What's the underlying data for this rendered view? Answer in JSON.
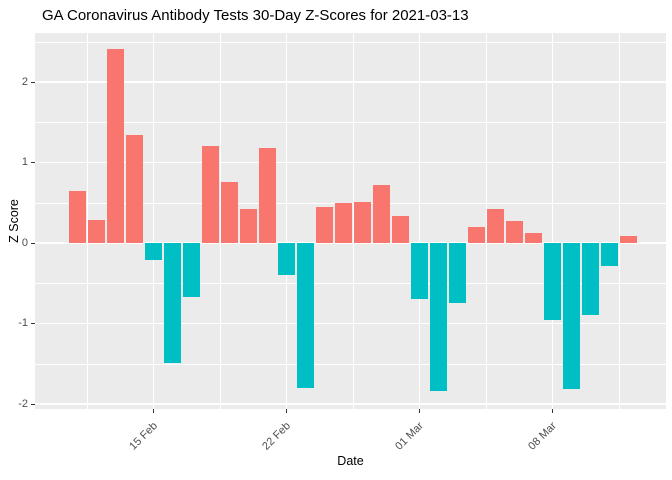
{
  "chart_data": {
    "type": "bar",
    "title": "GA Coronavirus Antibody Tests 30-Day Z-Scores for 2021-03-13",
    "xlabel": "Date",
    "ylabel": "Z Score",
    "values": [
      0.65,
      0.29,
      2.41,
      1.34,
      -0.21,
      -1.49,
      -0.67,
      1.21,
      0.76,
      0.42,
      1.18,
      -0.4,
      -1.8,
      0.45,
      0.5,
      0.51,
      0.72,
      0.34,
      -0.69,
      -1.84,
      -0.74,
      0.2,
      0.42,
      0.27,
      0.12,
      -0.96,
      -1.81,
      -0.89,
      -0.29,
      0.09
    ],
    "x_ticks": [
      {
        "label": "15 Feb",
        "bar_index": 4
      },
      {
        "label": "22 Feb",
        "bar_index": 11
      },
      {
        "label": "01 Mar",
        "bar_index": 18
      },
      {
        "label": "08 Mar",
        "bar_index": 25
      }
    ],
    "y_ticks": [
      2,
      1,
      0,
      -1,
      -2
    ],
    "y_minor_ticks": [
      2.5,
      1.5,
      0.5,
      -0.5,
      -1.5
    ],
    "ylim": [
      -2.06,
      2.61
    ],
    "legend_position": "none",
    "grid": "on",
    "colors": {
      "positive": "#F8766D",
      "negative": "#00BFC4",
      "panel_background": "#EBEBEB",
      "gridline": "#FFFFFF",
      "axis_text": "#4D4D4D",
      "tick_mark": "#333333",
      "title_text": "#000000"
    }
  }
}
